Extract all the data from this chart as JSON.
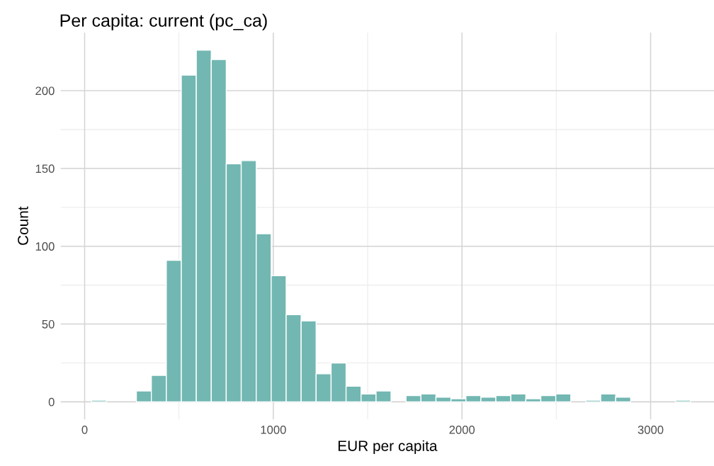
{
  "chart_data": {
    "type": "histogram",
    "title": "Per capita: current (pc_ca)",
    "xlabel": "EUR per capita",
    "ylabel": "Count",
    "bins": [
      36,
      115.4,
      194.8,
      274.2,
      353.6,
      433,
      512.4,
      591.8,
      671.2,
      750.6,
      830,
      909.4,
      988.8,
      1068.2,
      1147.6,
      1227,
      1306.4,
      1385.8,
      1465.2,
      1544.6,
      1624,
      1703.4,
      1782.8,
      1862.2,
      1941.6,
      2021,
      2100.4,
      2179.8,
      2259.2,
      2338.6,
      2418,
      2497.4,
      2576.8,
      2656.2,
      2735.6,
      2815,
      2894.4,
      2973.8,
      3053.2,
      3132.6,
      3212,
      3291.4
    ],
    "values": [
      1,
      0,
      0,
      7,
      17,
      91,
      210,
      226,
      220,
      153,
      155,
      108,
      81,
      56,
      52,
      18,
      25,
      10,
      5,
      7,
      0,
      4,
      5,
      3,
      2,
      4,
      3,
      4,
      5,
      2,
      4,
      5,
      0,
      1,
      5,
      3,
      0,
      0,
      0,
      1,
      0
    ],
    "color": "#72b7b2",
    "xlim": [
      -127,
      3336
    ],
    "ylim": [
      -11.3,
      237.3
    ],
    "xticks": [
      0,
      1000,
      2000,
      3000
    ],
    "yticks": [
      0,
      50,
      100,
      150,
      200
    ],
    "grid": true
  }
}
